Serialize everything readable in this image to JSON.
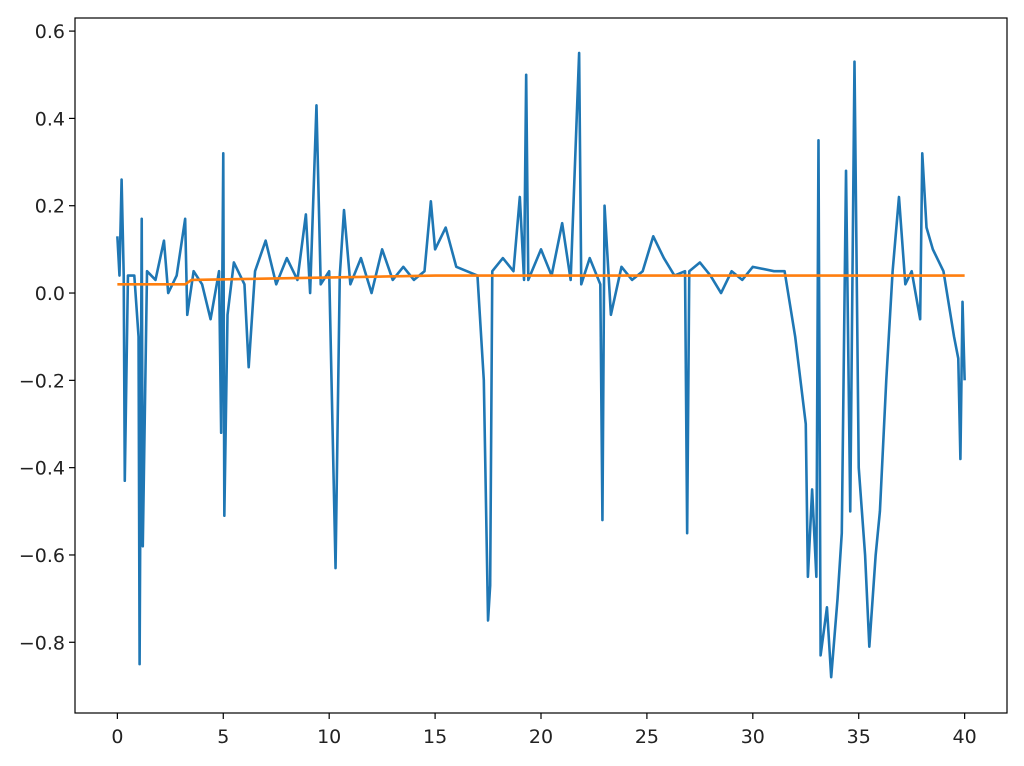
{
  "chart_data": {
    "type": "line",
    "xlim": [
      -2,
      42
    ],
    "ylim": [
      -0.962,
      0.63
    ],
    "xticks": [
      0,
      5,
      10,
      15,
      20,
      25,
      30,
      35,
      40
    ],
    "yticks": [
      {
        "value": -0.8,
        "label": "−0.8"
      },
      {
        "value": -0.6,
        "label": "−0.6"
      },
      {
        "value": -0.4,
        "label": "−0.4"
      },
      {
        "value": -0.2,
        "label": "−0.2"
      },
      {
        "value": 0,
        "label": "0.0"
      },
      0.2,
      0.4,
      0.6
    ],
    "series": [
      {
        "color": "#1f77b4",
        "x": [
          0,
          0.1,
          0.2,
          0.3,
          0.35,
          0.5,
          0.8,
          1.0,
          1.05,
          1.15,
          1.2,
          1.4,
          1.8,
          2.2,
          2.4,
          2.8,
          3.2,
          3.3,
          3.6,
          4.0,
          4.4,
          4.8,
          4.9,
          5.0,
          5.05,
          5.2,
          5.5,
          6.0,
          6.2,
          6.5,
          7.0,
          7.5,
          8.0,
          8.5,
          8.9,
          9.1,
          9.4,
          9.6,
          10.0,
          10.3,
          10.5,
          10.7,
          11.0,
          11.5,
          12.0,
          12.5,
          13.0,
          13.5,
          14.0,
          14.5,
          14.8,
          15.0,
          15.5,
          16.0,
          16.5,
          17.0,
          17.3,
          17.5,
          17.6,
          17.7,
          18.2,
          18.7,
          19.0,
          19.2,
          19.3,
          19.4,
          20.0,
          20.5,
          21.0,
          21.4,
          21.8,
          21.9,
          22.3,
          22.8,
          22.9,
          23.0,
          23.3,
          23.8,
          24.3,
          24.8,
          25.3,
          25.8,
          26.3,
          26.8,
          26.9,
          27.0,
          27.5,
          28.0,
          28.5,
          29.0,
          29.5,
          30.0,
          31.0,
          31.5,
          32.0,
          32.5,
          32.6,
          32.8,
          33.0,
          33.1,
          33.2,
          33.5,
          33.7,
          34.0,
          34.2,
          34.4,
          34.6,
          34.8,
          35.0,
          35.3,
          35.5,
          35.8,
          36.0,
          36.3,
          36.6,
          36.9,
          37.2,
          37.5,
          37.9,
          38.0,
          38.2,
          38.5,
          39.0,
          39.5,
          39.7,
          39.8,
          39.9,
          40.0
        ],
        "values": [
          0.13,
          0.04,
          0.26,
          0.04,
          -0.43,
          0.04,
          0.04,
          -0.1,
          -0.85,
          0.17,
          -0.58,
          0.05,
          0.03,
          0.12,
          0.0,
          0.04,
          0.17,
          -0.05,
          0.05,
          0.02,
          -0.06,
          0.05,
          -0.32,
          0.32,
          -0.51,
          -0.05,
          0.07,
          0.02,
          -0.17,
          0.05,
          0.12,
          0.02,
          0.08,
          0.03,
          0.18,
          0.0,
          0.43,
          0.02,
          0.05,
          -0.63,
          0.04,
          0.19,
          0.02,
          0.08,
          0.0,
          0.1,
          0.03,
          0.06,
          0.03,
          0.05,
          0.21,
          0.1,
          0.15,
          0.06,
          0.05,
          0.04,
          -0.2,
          -0.75,
          -0.67,
          0.05,
          0.08,
          0.05,
          0.22,
          0.03,
          0.5,
          0.03,
          0.1,
          0.04,
          0.16,
          0.03,
          0.55,
          0.02,
          0.08,
          0.02,
          -0.52,
          0.2,
          -0.05,
          0.06,
          0.03,
          0.05,
          0.13,
          0.08,
          0.04,
          0.05,
          -0.55,
          0.05,
          0.07,
          0.04,
          0.0,
          0.05,
          0.03,
          0.06,
          0.05,
          0.05,
          -0.1,
          -0.3,
          -0.65,
          -0.45,
          -0.65,
          0.35,
          -0.83,
          -0.72,
          -0.88,
          -0.7,
          -0.55,
          0.28,
          -0.5,
          0.53,
          -0.4,
          -0.6,
          -0.81,
          -0.6,
          -0.5,
          -0.2,
          0.05,
          0.22,
          0.02,
          0.05,
          -0.06,
          0.32,
          0.15,
          0.1,
          0.05,
          -0.1,
          -0.15,
          -0.38,
          -0.02,
          -0.2
        ]
      },
      {
        "color": "#ff7f0e",
        "x": [
          0,
          3.2,
          3.5,
          15,
          40
        ],
        "values": [
          0.02,
          0.02,
          0.03,
          0.04,
          0.04
        ]
      }
    ]
  }
}
